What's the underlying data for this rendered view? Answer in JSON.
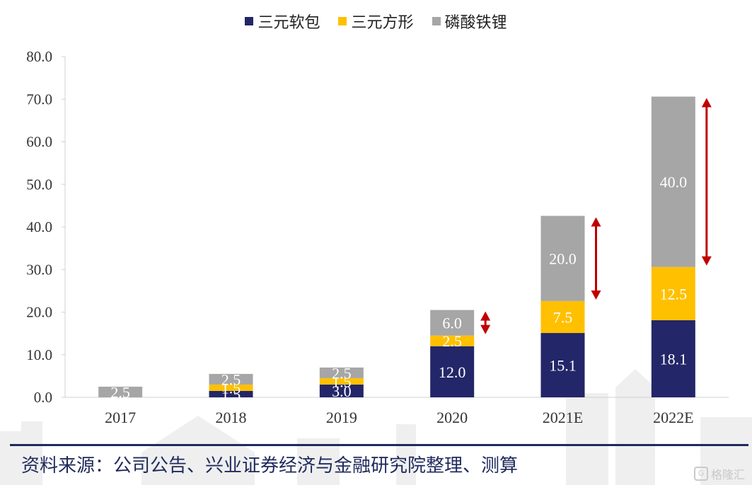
{
  "legend": [
    {
      "label": "三元软包",
      "color": "#232668"
    },
    {
      "label": "三元方形",
      "color": "#ffc000"
    },
    {
      "label": "磷酸铁锂",
      "color": "#a6a6a6"
    }
  ],
  "source": "资料来源：公司公告、兴业证券经济与金融研究院整理、测算",
  "watermark": "格隆汇",
  "chart_data": {
    "type": "bar",
    "stacked": true,
    "categories": [
      "2017",
      "2018",
      "2019",
      "2020",
      "2021E",
      "2022E"
    ],
    "series": [
      {
        "name": "三元软包",
        "values": [
          0,
          1.5,
          3.0,
          12.0,
          15.1,
          18.1
        ],
        "labels": [
          "",
          "1.5",
          "3.0",
          "12.0",
          "15.1",
          "18.1"
        ],
        "color": "#232668"
      },
      {
        "name": "三元方形",
        "values": [
          0,
          1.5,
          1.5,
          2.5,
          7.5,
          12.5
        ],
        "labels": [
          "",
          "1.5",
          "1.5",
          "2.5",
          "7.5",
          "12.5"
        ],
        "color": "#ffc000"
      },
      {
        "name": "磷酸铁锂",
        "values": [
          2.5,
          2.5,
          2.5,
          6.0,
          20.0,
          40.0
        ],
        "labels": [
          "2.5",
          "2.5",
          "2.5",
          "6.0",
          "20.0",
          "40.0"
        ],
        "color": "#a6a6a6"
      }
    ],
    "ylim": [
      0,
      80
    ],
    "yticks": [
      "0.0",
      "10.0",
      "20.0",
      "30.0",
      "40.0",
      "50.0",
      "60.0",
      "70.0",
      "80.0"
    ],
    "annotations": [
      {
        "type": "double-arrow",
        "category": "2020",
        "series": "磷酸铁锂",
        "color": "#c00000"
      },
      {
        "type": "double-arrow",
        "category": "2021E",
        "series": "磷酸铁锂",
        "color": "#c00000"
      },
      {
        "type": "double-arrow",
        "category": "2022E",
        "series": "磷酸铁锂",
        "color": "#c00000"
      }
    ],
    "grid": false,
    "legend_position": "top-center"
  }
}
